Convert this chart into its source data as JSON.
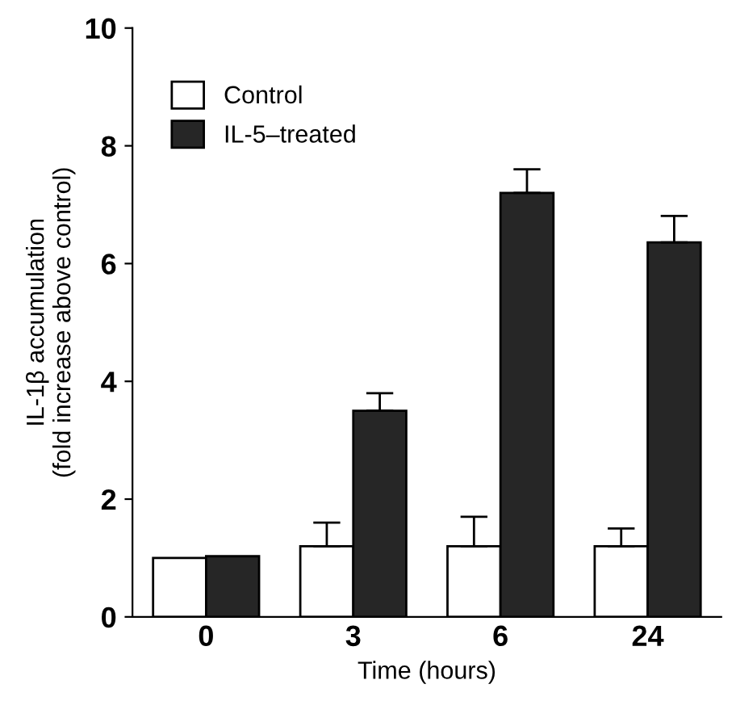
{
  "chart_data": {
    "type": "bar",
    "xlabel": "Time (hours)",
    "ylabel": "IL-1β accumulation\n(fold increase above control)",
    "categories": [
      "0",
      "3",
      "6",
      "24"
    ],
    "series": [
      {
        "name": "Control",
        "color": "#ffffff",
        "values": [
          1.0,
          1.2,
          1.2,
          1.2
        ],
        "errors": [
          null,
          [
            1.2,
            1.6
          ],
          [
            1.2,
            1.7
          ],
          [
            1.2,
            1.5
          ]
        ]
      },
      {
        "name": "IL-5–treated",
        "color": "#262626",
        "values": [
          1.03,
          3.5,
          7.2,
          6.36
        ],
        "errors": [
          null,
          [
            3.5,
            3.8
          ],
          [
            7.2,
            7.6
          ],
          [
            6.36,
            6.81
          ]
        ]
      }
    ],
    "ylim": [
      0,
      10
    ],
    "yticks": [
      0,
      2,
      4,
      6,
      8,
      10
    ],
    "grid": false,
    "legend": "top left"
  }
}
